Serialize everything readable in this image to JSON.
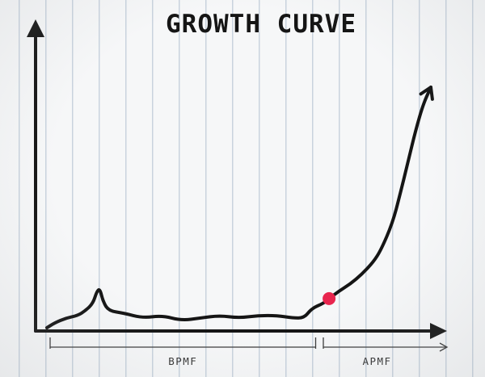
{
  "chart_data": {
    "type": "line",
    "title": "GROWTH CURVE",
    "xlabel": "",
    "ylabel": "",
    "grid": false,
    "xlim": [
      0,
      100
    ],
    "ylim": [
      0,
      100
    ],
    "series": [
      {
        "values": [
          [
            0,
            1
          ],
          [
            2,
            3
          ],
          [
            5,
            5
          ],
          [
            8,
            6
          ],
          [
            10,
            8
          ],
          [
            12,
            11
          ],
          [
            13,
            16
          ],
          [
            13.8,
            17
          ],
          [
            14.6,
            12
          ],
          [
            16,
            8
          ],
          [
            20,
            7
          ],
          [
            25,
            5
          ],
          [
            30,
            6
          ],
          [
            35,
            4
          ],
          [
            40,
            5
          ],
          [
            45,
            6
          ],
          [
            50,
            5
          ],
          [
            55,
            6
          ],
          [
            60,
            6
          ],
          [
            64,
            5
          ],
          [
            67,
            5
          ],
          [
            69,
            9
          ],
          [
            72,
            11
          ],
          [
            73.5,
            13
          ],
          [
            76,
            16
          ],
          [
            79,
            19
          ],
          [
            82,
            23
          ],
          [
            85,
            28
          ],
          [
            87,
            33
          ],
          [
            90,
            44
          ],
          [
            92,
            56
          ],
          [
            94,
            69
          ],
          [
            96,
            82
          ],
          [
            98,
            93
          ],
          [
            100,
            100
          ]
        ]
      }
    ],
    "highlight_point": {
      "x": 73.5,
      "y": 13,
      "color": "#e8254e"
    },
    "segments": [
      {
        "label": "BPMF",
        "from": 0,
        "to": 70
      },
      {
        "label": "APMF",
        "from": 72,
        "to": 100
      }
    ],
    "colors": {
      "ink": "#151515",
      "paper": "#f6f7f8",
      "rule": "#c9d3de",
      "marker": "#e8254e"
    }
  }
}
